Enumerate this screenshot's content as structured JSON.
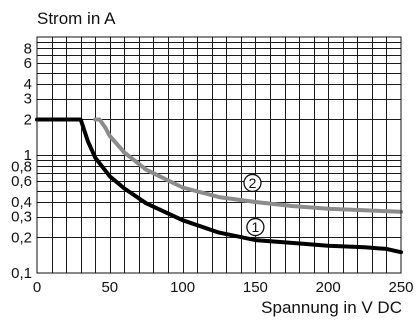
{
  "chart_data": {
    "type": "line",
    "title": "Strom in A",
    "xlabel": "Spannung in V DC",
    "ylabel": "",
    "x_ticks": [
      0,
      50,
      100,
      150,
      200,
      250
    ],
    "x_tick_labels": [
      "0",
      "50",
      "100",
      "150",
      "200",
      "250"
    ],
    "y_ticks": [
      0.1,
      0.2,
      0.3,
      0.4,
      0.6,
      0.8,
      1,
      2,
      3,
      4,
      6,
      8
    ],
    "y_tick_labels": [
      "0,1",
      "0,2",
      "0,3",
      "0,4",
      "0,6",
      "0,8",
      "1",
      "2",
      "3",
      "4",
      "6",
      "8"
    ],
    "xlim": [
      0,
      250
    ],
    "ylim": [
      0.1,
      10
    ],
    "y_scale": "log",
    "grid": true,
    "series": [
      {
        "name": "1",
        "color": "#000000",
        "x": [
          0,
          30,
          35,
          40,
          50,
          60,
          75,
          100,
          125,
          150,
          175,
          200,
          225,
          240,
          250
        ],
        "y": [
          2.0,
          2.0,
          1.3,
          0.95,
          0.66,
          0.52,
          0.39,
          0.28,
          0.22,
          0.19,
          0.18,
          0.17,
          0.165,
          0.16,
          0.15
        ]
      },
      {
        "name": "2",
        "color": "#8c8c8c",
        "x": [
          40,
          43,
          47,
          50,
          60,
          75,
          100,
          125,
          150,
          175,
          200,
          225,
          250
        ],
        "y": [
          2.0,
          2.0,
          1.7,
          1.45,
          1.05,
          0.75,
          0.53,
          0.44,
          0.4,
          0.37,
          0.35,
          0.34,
          0.33
        ]
      }
    ],
    "labels": [
      {
        "text": "1",
        "series": 0,
        "x": 150,
        "y": 0.245
      },
      {
        "text": "2",
        "series": 1,
        "x": 148,
        "y": 0.58
      }
    ]
  }
}
